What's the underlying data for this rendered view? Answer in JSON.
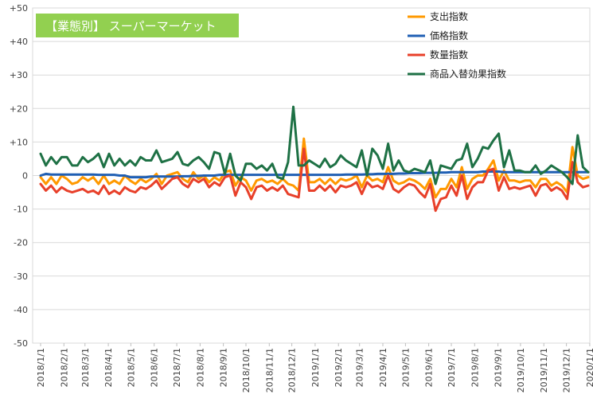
{
  "chart_data": {
    "type": "line",
    "title": "【業態別】 スーパーマーケット",
    "title_bg": "#92d050",
    "xlabel": "",
    "ylabel": "",
    "ylim": [
      -50,
      50
    ],
    "y_ticks": [
      "+50",
      "+40",
      "+30",
      "+20",
      "+10",
      "0",
      "-10",
      "-20",
      "-30",
      "-40",
      "-50"
    ],
    "y_tick_values": [
      50,
      40,
      30,
      20,
      10,
      0,
      -10,
      -20,
      -30,
      -40,
      -50
    ],
    "grid": true,
    "legend_position": "top-right",
    "x_labels": [
      "2018/1/1",
      "2018/2/1",
      "2018/3/1",
      "2018/4/1",
      "2018/5/1",
      "2018/6/1",
      "2018/7/1",
      "2018/8/1",
      "2018/9/1",
      "2018/10/1",
      "2018/11/1",
      "2018/12/1",
      "2019/1/1",
      "2019/2/1",
      "2019/3/1",
      "2019/4/1",
      "2019/5/1",
      "2019/6/1",
      "2019/7/1",
      "2019/8/1",
      "2019/9/1",
      "2019/10/1",
      "2019/11/1",
      "2019/12/1",
      "2020/1/1"
    ],
    "x_label_week_index": [
      0,
      4.43,
      8.43,
      12.86,
      17.14,
      21.57,
      25.86,
      30.29,
      34.71,
      39,
      43.43,
      47.71,
      52.14,
      56.57,
      60.57,
      65,
      69.29,
      73.71,
      78,
      82.43,
      86.86,
      91.14,
      95.57,
      99.86,
      104.29
    ],
    "series": [
      {
        "name": "支出指数",
        "color": "#ff9900",
        "values": [
          -0.5,
          -2.5,
          -0.5,
          -2.5,
          0,
          -1,
          -2.5,
          -2,
          -0.5,
          -1.5,
          -0.5,
          -2.5,
          0,
          -2.5,
          -1.5,
          -2.5,
          0,
          -1.5,
          -2.5,
          -1,
          -2,
          -1,
          0.5,
          -2.5,
          0,
          0.5,
          1,
          -1,
          -2,
          1,
          -1,
          0,
          -2,
          -0.5,
          -1.5,
          1,
          1.5,
          -3,
          -0.5,
          -1.5,
          -4.5,
          -1.5,
          -1,
          -2,
          -1.5,
          -2.5,
          -1,
          -2.5,
          -3,
          -4.5,
          11,
          -2,
          -2,
          -1,
          -2.5,
          -1,
          -2.5,
          -1,
          -1.5,
          -1,
          0,
          -3.5,
          0,
          -1.5,
          -1,
          -2,
          2.5,
          -1.5,
          -2.5,
          -2,
          -1,
          -1.5,
          -2.5,
          -4,
          -1,
          -6.5,
          -4,
          -4,
          -1,
          -3.5,
          2.5,
          -4,
          -1,
          0,
          0,
          2,
          4.5,
          -1.5,
          1.5,
          -1.5,
          -1.5,
          -2,
          -1.5,
          -1.5,
          -3.5,
          -1,
          -1,
          -3,
          -2,
          -3,
          -5,
          8.5,
          0,
          -1,
          -0.5
        ],
        "note": ""
      },
      {
        "name": "価格指数",
        "color": "#1f5fb4",
        "values": [
          0,
          0.5,
          0.3,
          0.3,
          0.3,
          0.3,
          0.3,
          0.3,
          0.3,
          0.3,
          0.3,
          0.2,
          0.2,
          0.2,
          0.2,
          0,
          0,
          -0.5,
          -0.5,
          -0.5,
          -0.5,
          -0.3,
          -0.3,
          -0.3,
          -0.3,
          -0.3,
          -0.3,
          -0.2,
          -0.2,
          -0.1,
          -0.1,
          0,
          0,
          0,
          0.2,
          0.2,
          0.2,
          0.2,
          0.2,
          0.2,
          0.2,
          0.2,
          0.2,
          0.2,
          0.2,
          0.2,
          0.2,
          0.2,
          0.2,
          0.2,
          0.2,
          0.2,
          0.2,
          0.2,
          0.2,
          0.2,
          0.2,
          0.2,
          0.3,
          0.3,
          0.3,
          0.3,
          0.4,
          0.4,
          0.5,
          0.5,
          0.5,
          0.5,
          0.6,
          0.6,
          0.7,
          0.7,
          0.7,
          0.8,
          0.8,
          0.8,
          0.9,
          0.9,
          1,
          1,
          1,
          1,
          1,
          1,
          1.2,
          1.2,
          1.2,
          1.2,
          1,
          1,
          1,
          1,
          1,
          1,
          1,
          1,
          1,
          1,
          1,
          1,
          1,
          1,
          1,
          1,
          1
        ],
        "note": ""
      },
      {
        "name": "数量指数",
        "color": "#e8402a",
        "values": [
          -2.5,
          -4.5,
          -3,
          -5,
          -3.5,
          -4.5,
          -5,
          -4.5,
          -4,
          -5,
          -4.5,
          -5.5,
          -3,
          -5.5,
          -4.5,
          -5.5,
          -3.5,
          -4.5,
          -5,
          -3.5,
          -4,
          -3,
          -1.5,
          -4,
          -2.5,
          -1,
          -0.5,
          -2.5,
          -3.5,
          -1,
          -2,
          -1,
          -3.5,
          -2,
          -3,
          -0.5,
          0,
          -6,
          -2,
          -3.5,
          -7,
          -3.5,
          -3,
          -4.5,
          -3.5,
          -4.5,
          -3,
          -5.5,
          -6,
          -6.5,
          8,
          -4.5,
          -4.5,
          -3,
          -4.5,
          -3,
          -5,
          -3,
          -3.5,
          -3,
          -2,
          -5.5,
          -2,
          -3.5,
          -3,
          -4,
          0,
          -4,
          -5,
          -3.5,
          -2.5,
          -3,
          -5,
          -6.5,
          -2.5,
          -10.5,
          -7,
          -6.5,
          -3,
          -6,
          0,
          -7,
          -3.5,
          -2,
          -2,
          1.5,
          2,
          -4.5,
          -0.5,
          -4,
          -3.5,
          -4,
          -3.5,
          -3,
          -6,
          -3,
          -2.5,
          -4.5,
          -3.5,
          -4.5,
          -7,
          4,
          -2,
          -3.5,
          -3
        ],
        "note": ""
      },
      {
        "name": "商品入替効果指数",
        "color": "#1e7145",
        "values": [
          6.5,
          3,
          5.5,
          3.5,
          5.5,
          5.5,
          3,
          3,
          5.5,
          4,
          5,
          6.5,
          2.5,
          6.5,
          3,
          5,
          3,
          4.5,
          3,
          5.5,
          4.5,
          4.5,
          7.5,
          4,
          4.5,
          5,
          7,
          3.5,
          3,
          4.5,
          5.5,
          4,
          2,
          7,
          6.5,
          0.5,
          6.5,
          0,
          -1.5,
          3.5,
          3.5,
          2,
          3,
          1.5,
          3.5,
          -0.5,
          -1,
          4,
          20.5,
          3,
          3,
          4.5,
          3.5,
          2.5,
          5,
          2.5,
          3.5,
          6,
          4.5,
          3.5,
          2.5,
          7.5,
          0,
          8,
          6,
          2,
          9.5,
          1.5,
          4.5,
          1.5,
          1,
          2,
          1.5,
          1,
          4.5,
          -2.5,
          3,
          2.5,
          2,
          4.5,
          5,
          9.5,
          2.5,
          5,
          8.5,
          8,
          10.5,
          12.5,
          2.5,
          7.5,
          1.5,
          1.5,
          1,
          1,
          3,
          0.5,
          1.5,
          3,
          2,
          1,
          -0.5,
          -2.5,
          12,
          2.5,
          1
        ],
        "note": ""
      }
    ]
  }
}
